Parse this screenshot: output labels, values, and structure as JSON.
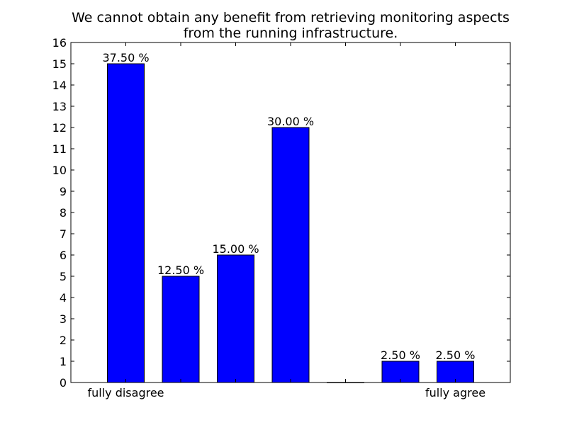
{
  "chart_data": {
    "type": "bar",
    "title_lines": [
      "We cannot obtain any benefit from retrieving monitoring aspects",
      "from the running infrastructure."
    ],
    "categories": [
      "fully disagree",
      "",
      "",
      "",
      "",
      "",
      "fully agree"
    ],
    "values": [
      15,
      5,
      6,
      12,
      0,
      1,
      1
    ],
    "data_labels": [
      "37.50 %",
      "12.50 %",
      "15.00 %",
      "30.00 %",
      "",
      "2.50 %",
      "2.50 %"
    ],
    "ylim": [
      0,
      16
    ],
    "yticks": [
      0,
      1,
      2,
      3,
      4,
      5,
      6,
      7,
      8,
      9,
      10,
      11,
      12,
      13,
      14,
      15,
      16
    ],
    "grid": false,
    "bar_color": "#0000ff"
  }
}
